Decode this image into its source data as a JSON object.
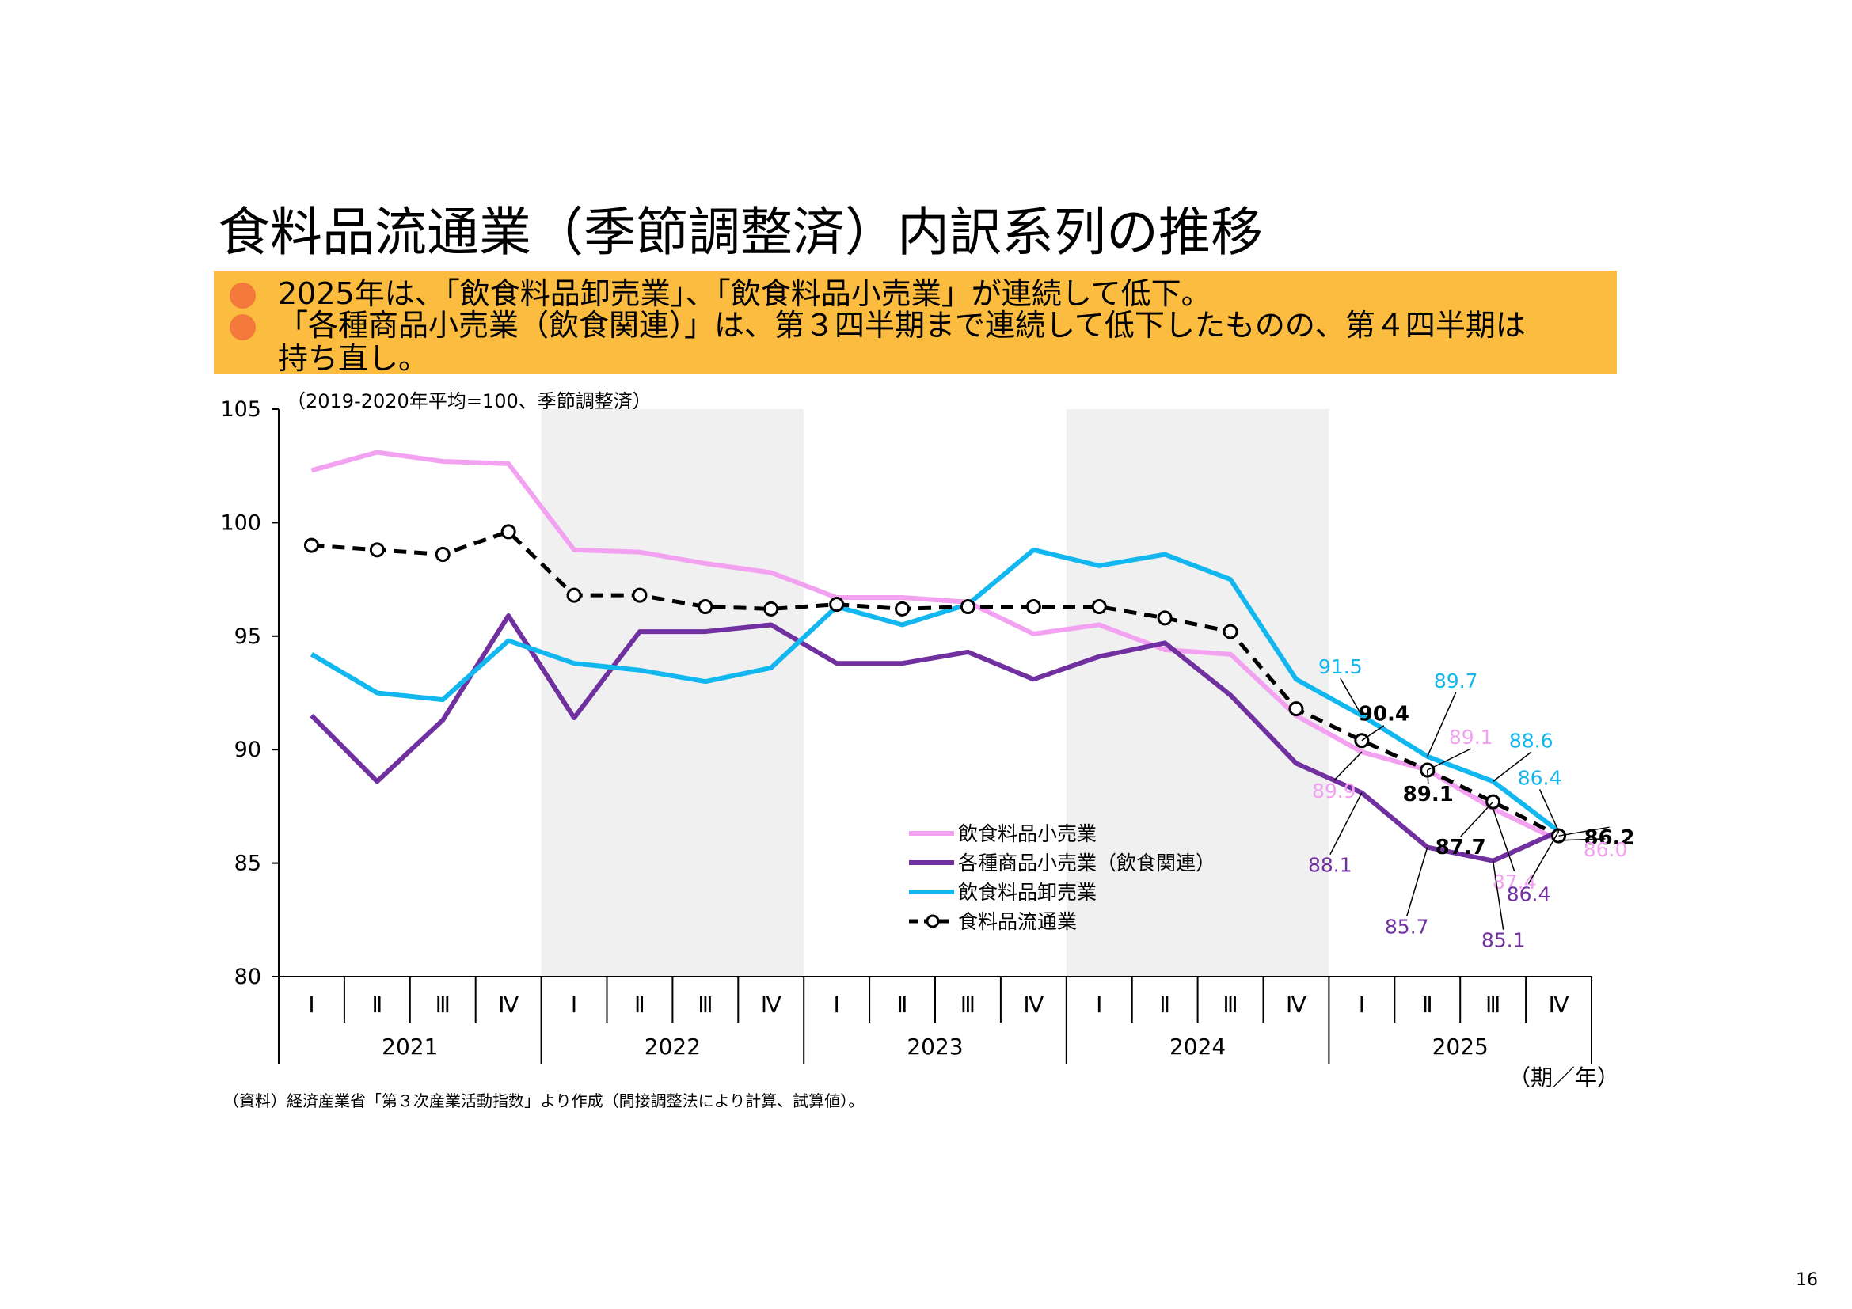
{
  "title": "食料品流通業（季節調整済）内訳系列の推移",
  "summary": [
    "2025年は、「飲食料品卸売業」、「飲食料品小売業」が連続して低下。",
    "「各種商品小売業（飲食関連）」は、第３四半期まで連続して低下したものの、第４四半期は\n持ち直し。"
  ],
  "chart_note": "（2019-2020年平均=100、季節調整済）",
  "source": "（資料）経済産業省「第３次産業活動指数」より作成（間接調整法により計算、試算値）。",
  "axis_unit": "（期／年）",
  "page_number": "16",
  "colors": {
    "summary_bg": "#fbbc3f",
    "bullet": "#f37a3a",
    "shading": "#f0f0f0",
    "retail_food": "#f2a2f0",
    "general_retail": "#7030a0",
    "wholesale_food": "#12b7f0",
    "food_distribution": "#000000"
  },
  "chart_data": {
    "type": "line",
    "ylim": [
      80,
      105
    ],
    "yticks": [
      80,
      85,
      90,
      95,
      100,
      105
    ],
    "quarters": [
      "Ⅰ",
      "Ⅱ",
      "Ⅲ",
      "Ⅳ"
    ],
    "years": [
      "2021",
      "2022",
      "2023",
      "2024",
      "2025"
    ],
    "shaded_years": [
      "2022",
      "2024"
    ],
    "series": [
      {
        "name": "飲食料品小売業",
        "color": "#f2a2f0",
        "style": "solid",
        "values": [
          102.3,
          103.1,
          102.7,
          102.6,
          98.8,
          98.7,
          98.2,
          97.8,
          96.7,
          96.7,
          96.5,
          95.1,
          95.5,
          94.4,
          94.2,
          91.5,
          89.9,
          89.1,
          87.4,
          86.0
        ]
      },
      {
        "name": "各種商品小売業（飲食関連）",
        "color": "#7030a0",
        "style": "solid",
        "values": [
          91.5,
          88.6,
          91.3,
          95.9,
          91.4,
          95.2,
          95.2,
          95.5,
          93.8,
          93.8,
          94.3,
          93.1,
          94.1,
          94.7,
          92.4,
          89.4,
          88.1,
          85.7,
          85.1,
          86.4
        ]
      },
      {
        "name": "飲食料品卸売業",
        "color": "#12b7f0",
        "style": "solid",
        "values": [
          94.2,
          92.5,
          92.2,
          94.8,
          93.8,
          93.5,
          93.0,
          93.6,
          96.3,
          95.5,
          96.4,
          98.8,
          98.1,
          98.6,
          97.5,
          93.1,
          91.5,
          89.7,
          88.6,
          86.4
        ]
      },
      {
        "name": "食料品流通業",
        "color": "#000000",
        "style": "dashed",
        "markers": true,
        "values": [
          99.0,
          98.8,
          98.6,
          99.6,
          96.8,
          96.8,
          96.3,
          96.2,
          96.4,
          96.2,
          96.3,
          96.3,
          96.3,
          95.8,
          95.2,
          91.8,
          90.4,
          89.1,
          87.7,
          86.2
        ]
      }
    ],
    "data_labels": [
      {
        "text": "91.5",
        "series": 2,
        "index": 16
      },
      {
        "text": "90.4",
        "series": 3,
        "index": 16
      },
      {
        "text": "89.9",
        "series": 0,
        "index": 16
      },
      {
        "text": "88.1",
        "series": 1,
        "index": 16
      },
      {
        "text": "89.7",
        "series": 2,
        "index": 17
      },
      {
        "text": "89.1",
        "series": 0,
        "index": 17
      },
      {
        "text": "89.1",
        "series": 3,
        "index": 17
      },
      {
        "text": "85.7",
        "series": 1,
        "index": 17
      },
      {
        "text": "88.6",
        "series": 2,
        "index": 18
      },
      {
        "text": "87.7",
        "series": 3,
        "index": 18
      },
      {
        "text": "87.4",
        "series": 0,
        "index": 18
      },
      {
        "text": "85.1",
        "series": 1,
        "index": 18
      },
      {
        "text": "86.4",
        "series": 2,
        "index": 19
      },
      {
        "text": "86.2",
        "series": 3,
        "index": 19
      },
      {
        "text": "86.0",
        "series": 0,
        "index": 19
      },
      {
        "text": "86.4",
        "series": 1,
        "index": 19
      }
    ]
  }
}
